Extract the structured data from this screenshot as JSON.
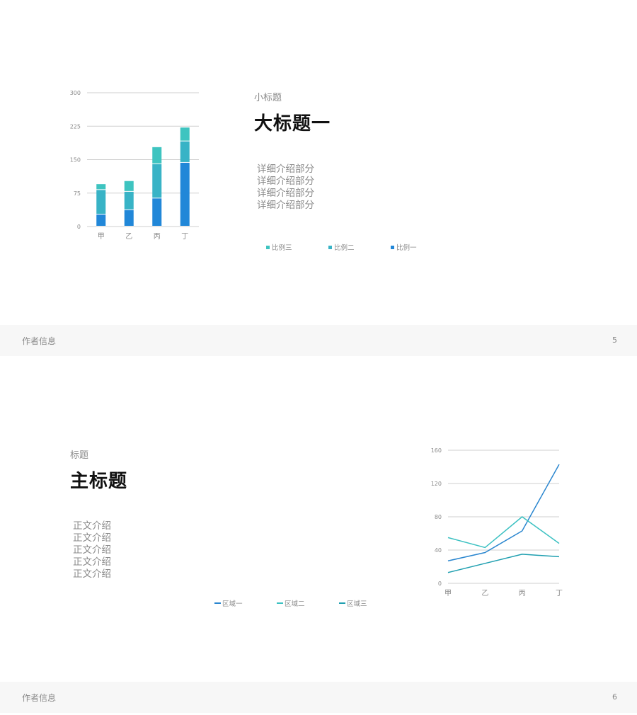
{
  "slides": [
    {
      "subtitle": "小标题",
      "title": "大标题一",
      "body": [
        "详细介绍部分",
        "详细介绍部分",
        "详细介绍部分",
        "详细介绍部分"
      ],
      "footer": {
        "author": "作者信息",
        "page": "5"
      },
      "legend": [
        {
          "label": "比例三",
          "color": "#3ec4c0"
        },
        {
          "label": "比例二",
          "color": "#38b3c6"
        },
        {
          "label": "比例一",
          "color": "#2187d8"
        }
      ]
    },
    {
      "subtitle": "标题",
      "title": "主标题",
      "body": [
        "正文介绍",
        "正文介绍",
        "正文介绍",
        "正文介绍",
        "正文介绍"
      ],
      "footer": {
        "author": "作者信息",
        "page": "6"
      },
      "legend": [
        {
          "label": "区域一",
          "color": "#2a86cf"
        },
        {
          "label": "区域二",
          "color": "#3cc1c2"
        },
        {
          "label": "区域三",
          "color": "#1f9fb0"
        }
      ]
    }
  ],
  "chart_data": [
    {
      "type": "bar",
      "stacked": true,
      "categories": [
        "甲",
        "乙",
        "丙",
        "丁"
      ],
      "series": [
        {
          "name": "比例一",
          "values": [
            27,
            37,
            63,
            143
          ],
          "color": "#2187d8"
        },
        {
          "name": "比例二",
          "values": [
            55,
            41,
            77,
            48
          ],
          "color": "#38b3c6"
        },
        {
          "name": "比例三",
          "values": [
            13,
            24,
            38,
            31
          ],
          "color": "#3ec4c0"
        }
      ],
      "yticks": [
        0,
        75,
        150,
        225,
        300
      ],
      "ylim": [
        0,
        300
      ],
      "grid": true,
      "legend": "bottom"
    },
    {
      "type": "line",
      "categories": [
        "甲",
        "乙",
        "丙",
        "丁"
      ],
      "series": [
        {
          "name": "区域一",
          "values": [
            27,
            37,
            63,
            143
          ],
          "color": "#2a86cf"
        },
        {
          "name": "区域二",
          "values": [
            55,
            43,
            80,
            48
          ],
          "color": "#3cc1c2"
        },
        {
          "name": "区域三",
          "values": [
            13,
            24,
            35,
            32
          ],
          "color": "#1f9fb0"
        }
      ],
      "yticks": [
        0,
        40,
        80,
        120,
        160
      ],
      "ylim": [
        0,
        160
      ],
      "grid": true,
      "legend": "bottom"
    }
  ]
}
